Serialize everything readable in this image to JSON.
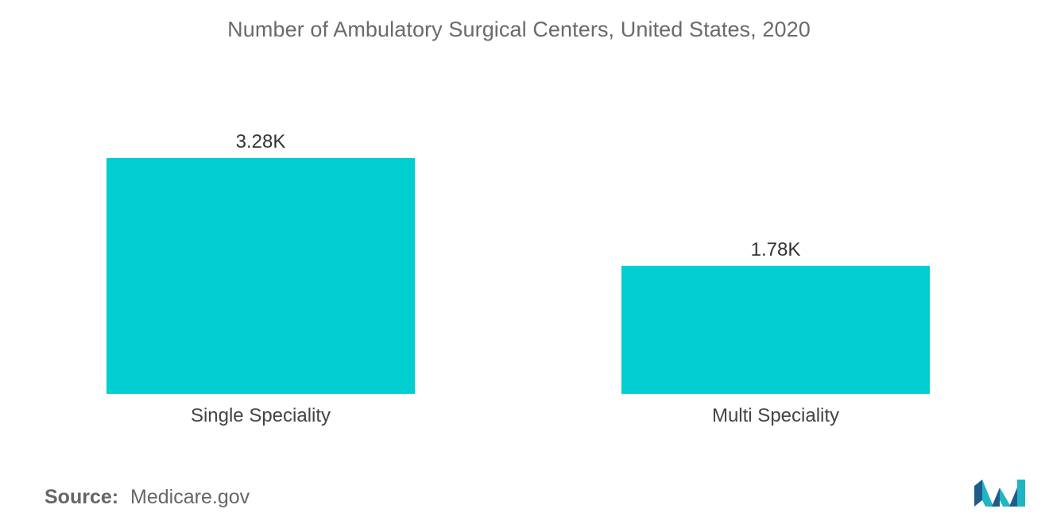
{
  "chart_data": {
    "type": "bar",
    "title": "Number of Ambulatory Surgical Centers, United States, 2020",
    "categories": [
      "Single Speciality",
      "Multi Speciality"
    ],
    "values": [
      3280,
      1780
    ],
    "value_labels": [
      "3.28K",
      "1.78K"
    ],
    "xlabel": "",
    "ylabel": "",
    "ylim": [
      0,
      3600
    ],
    "grid": false,
    "legend": "none",
    "bar_color": "#00ced1"
  },
  "source": {
    "label": "Source:",
    "value": "Medicare.gov"
  },
  "colors": {
    "bar": "#00ced1",
    "logo_dark": "#1f5c8b",
    "logo_light": "#20b5c2"
  },
  "logo": {
    "icon": "mordor-logo-icon"
  }
}
